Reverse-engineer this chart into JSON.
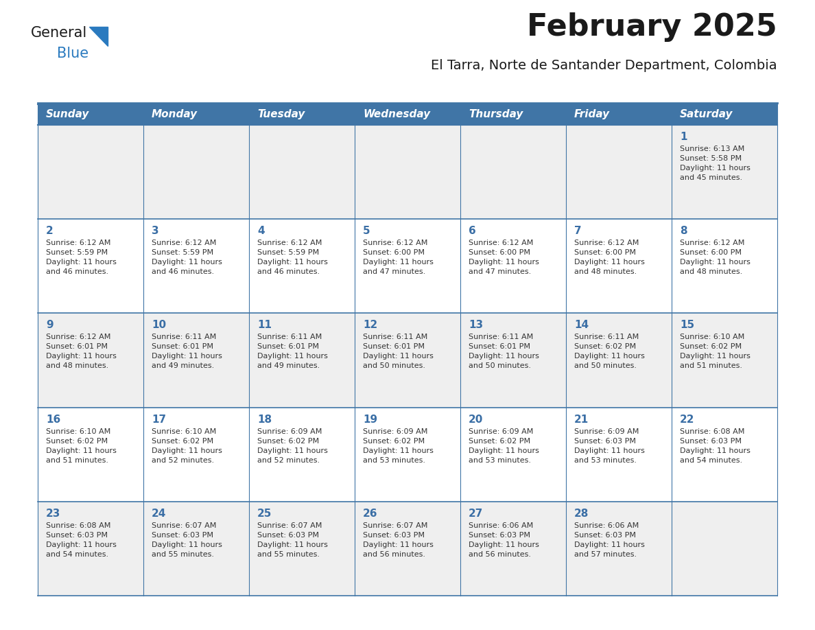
{
  "title": "February 2025",
  "subtitle": "El Tarra, Norte de Santander Department, Colombia",
  "header_color": "#4075a6",
  "header_text_color": "#ffffff",
  "cell_bg_even": "#efefef",
  "cell_bg_odd": "#ffffff",
  "day_number_color": "#3a6ea5",
  "text_color": "#333333",
  "border_color": "#4075a6",
  "line_color": "#4075a6",
  "days_of_week": [
    "Sunday",
    "Monday",
    "Tuesday",
    "Wednesday",
    "Thursday",
    "Friday",
    "Saturday"
  ],
  "weeks": [
    [
      {
        "day": null,
        "info": null
      },
      {
        "day": null,
        "info": null
      },
      {
        "day": null,
        "info": null
      },
      {
        "day": null,
        "info": null
      },
      {
        "day": null,
        "info": null
      },
      {
        "day": null,
        "info": null
      },
      {
        "day": 1,
        "info": "Sunrise: 6:13 AM\nSunset: 5:58 PM\nDaylight: 11 hours\nand 45 minutes."
      }
    ],
    [
      {
        "day": 2,
        "info": "Sunrise: 6:12 AM\nSunset: 5:59 PM\nDaylight: 11 hours\nand 46 minutes."
      },
      {
        "day": 3,
        "info": "Sunrise: 6:12 AM\nSunset: 5:59 PM\nDaylight: 11 hours\nand 46 minutes."
      },
      {
        "day": 4,
        "info": "Sunrise: 6:12 AM\nSunset: 5:59 PM\nDaylight: 11 hours\nand 46 minutes."
      },
      {
        "day": 5,
        "info": "Sunrise: 6:12 AM\nSunset: 6:00 PM\nDaylight: 11 hours\nand 47 minutes."
      },
      {
        "day": 6,
        "info": "Sunrise: 6:12 AM\nSunset: 6:00 PM\nDaylight: 11 hours\nand 47 minutes."
      },
      {
        "day": 7,
        "info": "Sunrise: 6:12 AM\nSunset: 6:00 PM\nDaylight: 11 hours\nand 48 minutes."
      },
      {
        "day": 8,
        "info": "Sunrise: 6:12 AM\nSunset: 6:00 PM\nDaylight: 11 hours\nand 48 minutes."
      }
    ],
    [
      {
        "day": 9,
        "info": "Sunrise: 6:12 AM\nSunset: 6:01 PM\nDaylight: 11 hours\nand 48 minutes."
      },
      {
        "day": 10,
        "info": "Sunrise: 6:11 AM\nSunset: 6:01 PM\nDaylight: 11 hours\nand 49 minutes."
      },
      {
        "day": 11,
        "info": "Sunrise: 6:11 AM\nSunset: 6:01 PM\nDaylight: 11 hours\nand 49 minutes."
      },
      {
        "day": 12,
        "info": "Sunrise: 6:11 AM\nSunset: 6:01 PM\nDaylight: 11 hours\nand 50 minutes."
      },
      {
        "day": 13,
        "info": "Sunrise: 6:11 AM\nSunset: 6:01 PM\nDaylight: 11 hours\nand 50 minutes."
      },
      {
        "day": 14,
        "info": "Sunrise: 6:11 AM\nSunset: 6:02 PM\nDaylight: 11 hours\nand 50 minutes."
      },
      {
        "day": 15,
        "info": "Sunrise: 6:10 AM\nSunset: 6:02 PM\nDaylight: 11 hours\nand 51 minutes."
      }
    ],
    [
      {
        "day": 16,
        "info": "Sunrise: 6:10 AM\nSunset: 6:02 PM\nDaylight: 11 hours\nand 51 minutes."
      },
      {
        "day": 17,
        "info": "Sunrise: 6:10 AM\nSunset: 6:02 PM\nDaylight: 11 hours\nand 52 minutes."
      },
      {
        "day": 18,
        "info": "Sunrise: 6:09 AM\nSunset: 6:02 PM\nDaylight: 11 hours\nand 52 minutes."
      },
      {
        "day": 19,
        "info": "Sunrise: 6:09 AM\nSunset: 6:02 PM\nDaylight: 11 hours\nand 53 minutes."
      },
      {
        "day": 20,
        "info": "Sunrise: 6:09 AM\nSunset: 6:02 PM\nDaylight: 11 hours\nand 53 minutes."
      },
      {
        "day": 21,
        "info": "Sunrise: 6:09 AM\nSunset: 6:03 PM\nDaylight: 11 hours\nand 53 minutes."
      },
      {
        "day": 22,
        "info": "Sunrise: 6:08 AM\nSunset: 6:03 PM\nDaylight: 11 hours\nand 54 minutes."
      }
    ],
    [
      {
        "day": 23,
        "info": "Sunrise: 6:08 AM\nSunset: 6:03 PM\nDaylight: 11 hours\nand 54 minutes."
      },
      {
        "day": 24,
        "info": "Sunrise: 6:07 AM\nSunset: 6:03 PM\nDaylight: 11 hours\nand 55 minutes."
      },
      {
        "day": 25,
        "info": "Sunrise: 6:07 AM\nSunset: 6:03 PM\nDaylight: 11 hours\nand 55 minutes."
      },
      {
        "day": 26,
        "info": "Sunrise: 6:07 AM\nSunset: 6:03 PM\nDaylight: 11 hours\nand 56 minutes."
      },
      {
        "day": 27,
        "info": "Sunrise: 6:06 AM\nSunset: 6:03 PM\nDaylight: 11 hours\nand 56 minutes."
      },
      {
        "day": 28,
        "info": "Sunrise: 6:06 AM\nSunset: 6:03 PM\nDaylight: 11 hours\nand 57 minutes."
      },
      {
        "day": null,
        "info": null
      }
    ]
  ],
  "logo_text_general": "General",
  "logo_text_blue": "Blue",
  "logo_color_general": "#1a1a1a",
  "logo_color_blue": "#2a7abf",
  "logo_triangle_color": "#2a7abf",
  "title_fontsize": 32,
  "subtitle_fontsize": 14,
  "dow_fontsize": 11,
  "day_num_fontsize": 11,
  "info_fontsize": 8
}
